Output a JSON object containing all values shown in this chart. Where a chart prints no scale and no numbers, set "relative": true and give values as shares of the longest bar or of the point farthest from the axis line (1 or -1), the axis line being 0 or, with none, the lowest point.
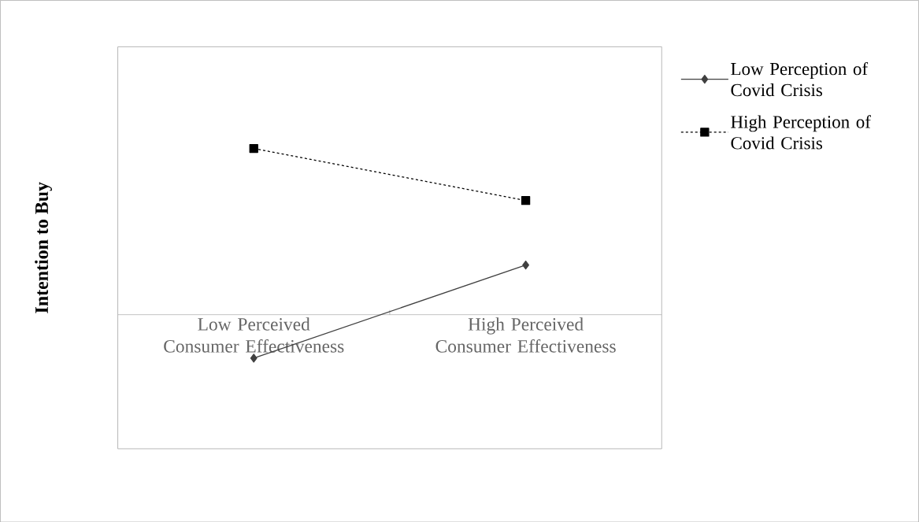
{
  "chart_data": {
    "type": "line",
    "relative": true,
    "ylabel": "Intention to Buy",
    "categories": [
      "Low Perceived Consumer Effectiveness",
      "High Perceived Consumer Effectiveness"
    ],
    "series": [
      {
        "name": "Low Perception of Covid Crisis",
        "color": "#404040",
        "values": [
          -0.261,
          0.299
        ],
        "marker": "diamond",
        "line_style": "solid"
      },
      {
        "name": "High Perception of Covid Crisis",
        "color": "#000000",
        "values": [
          1,
          0.687
        ],
        "marker": "square",
        "line_style": "dashed"
      }
    ],
    "legend": "top right",
    "grid": false
  }
}
